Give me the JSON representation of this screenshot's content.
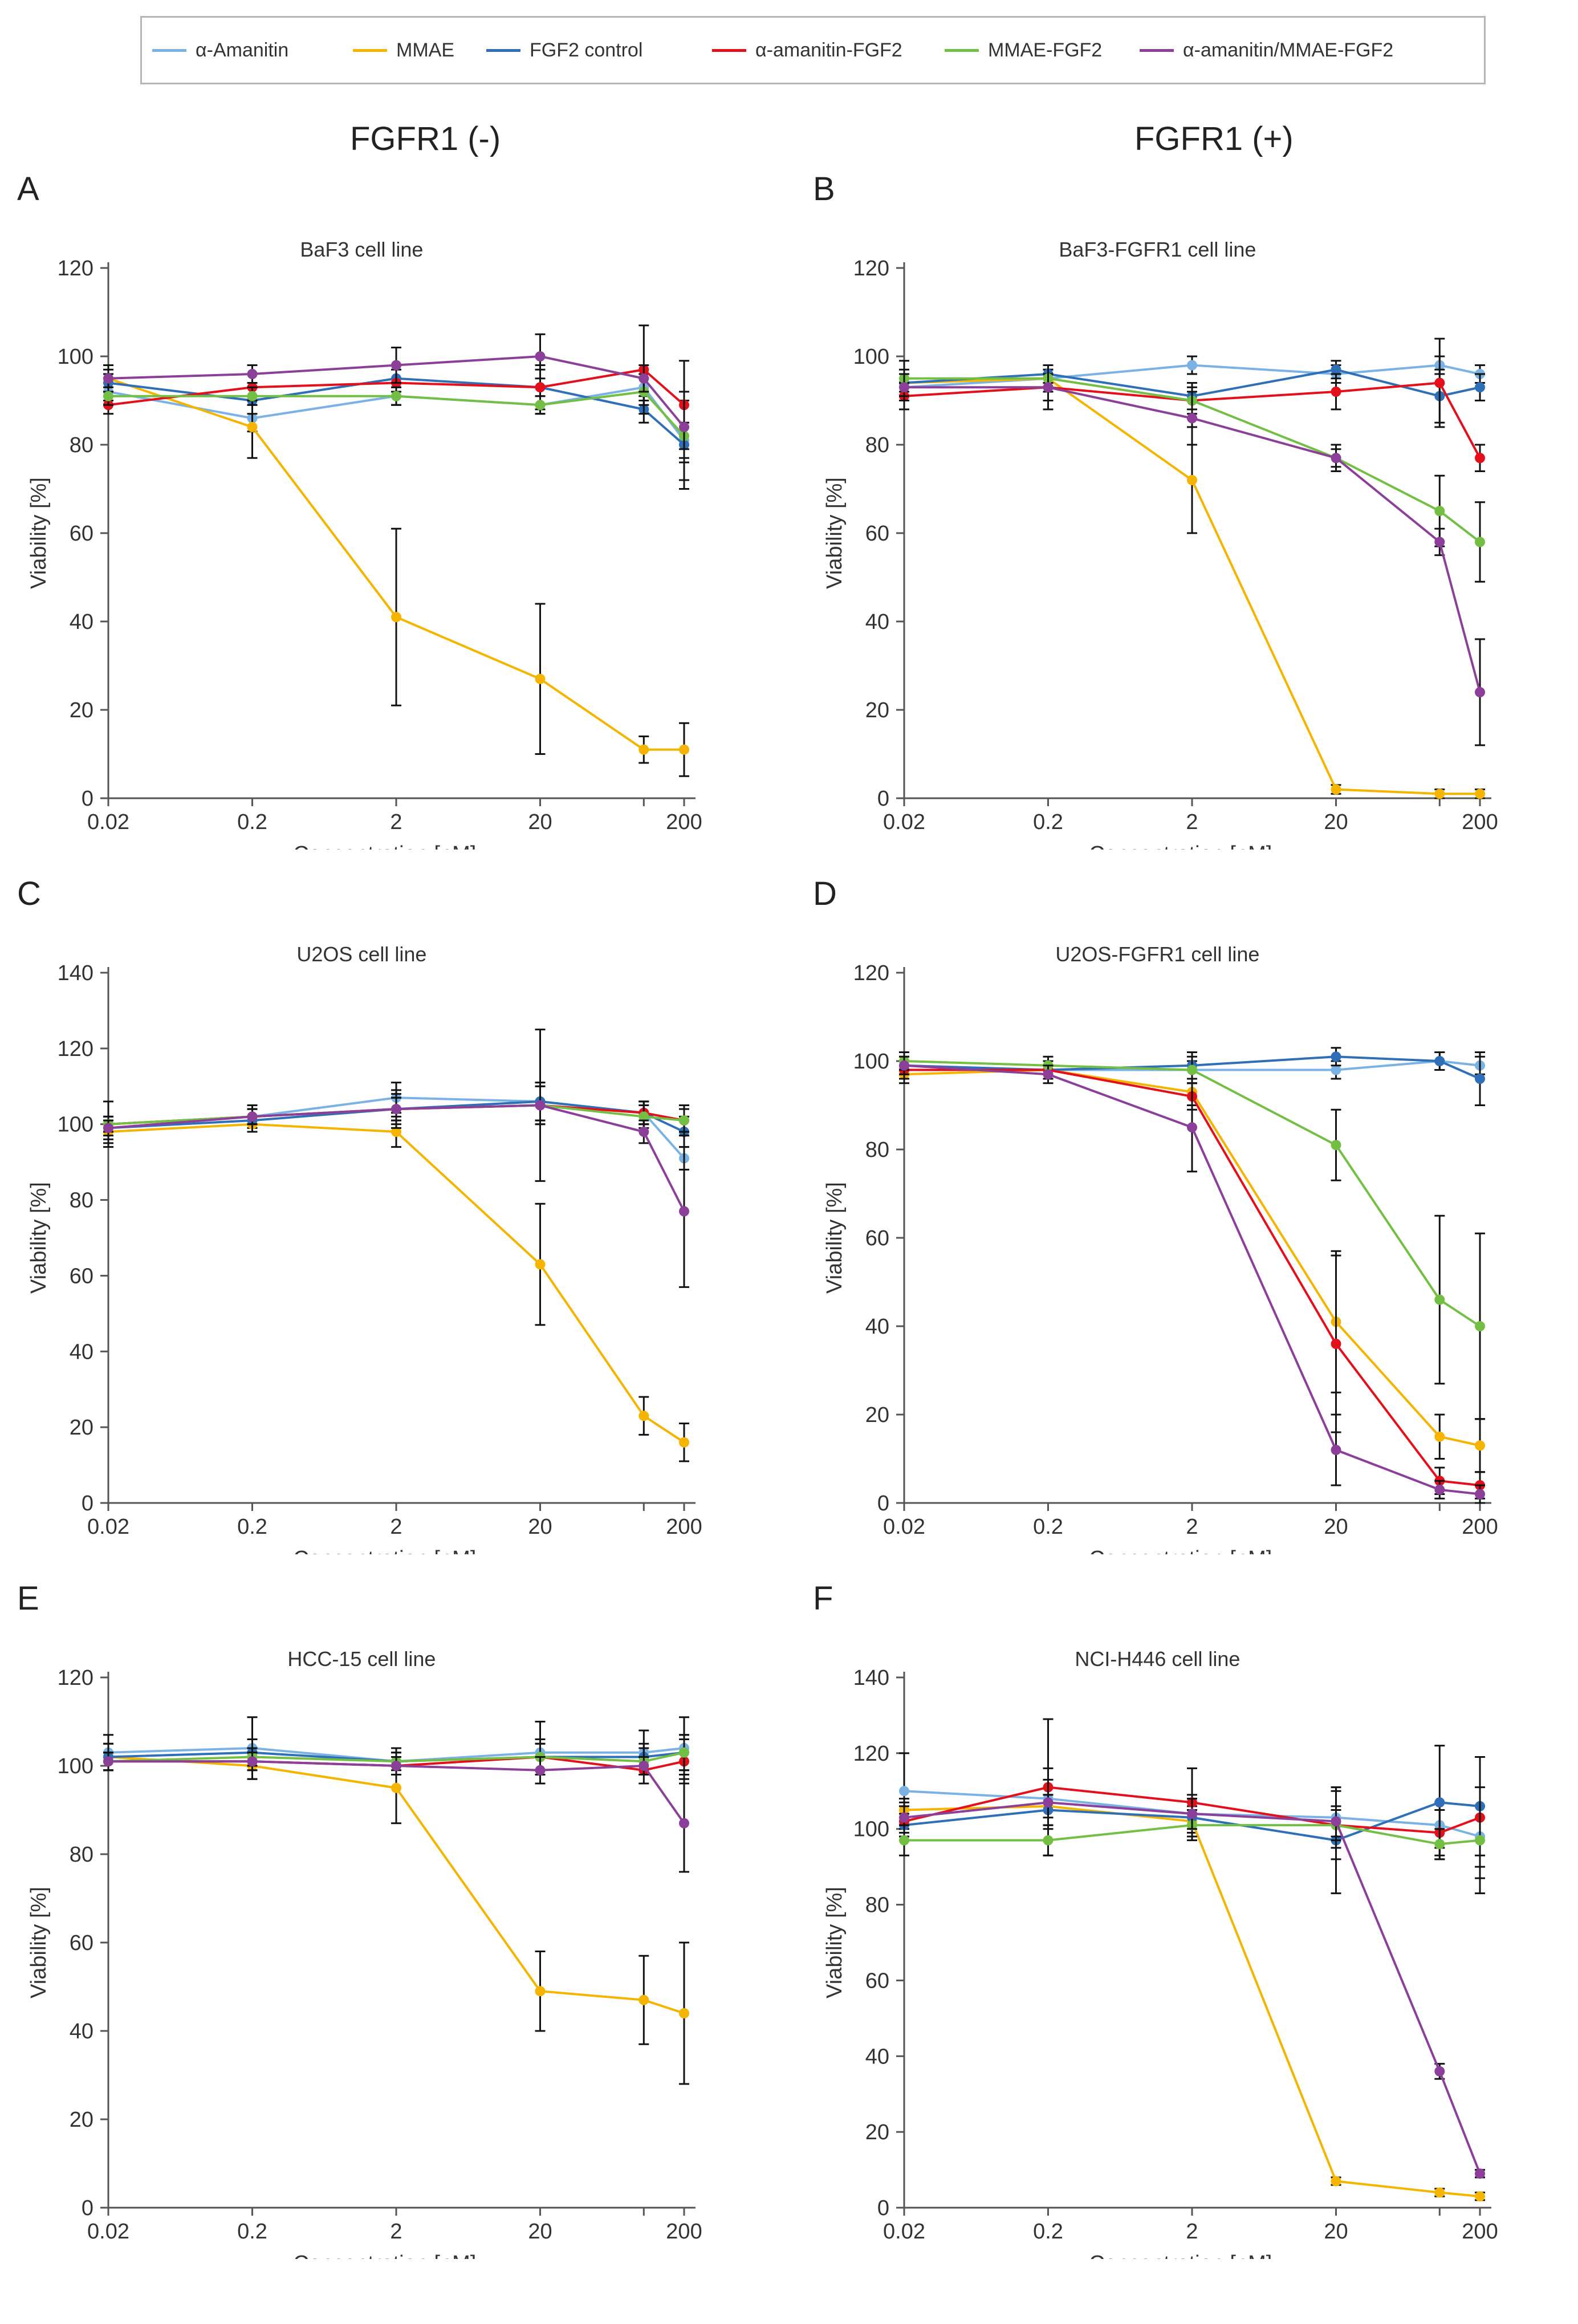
{
  "legend": [
    {
      "name": "α-Amanitin",
      "color": "#7ab3e3"
    },
    {
      "name": "MMAE",
      "color": "#f5b400"
    },
    {
      "name": "FGF2 control",
      "color": "#2e6fb8"
    },
    {
      "name": "α-amanitin-FGF2",
      "color": "#e3101c"
    },
    {
      "name": "MMAE-FGF2",
      "color": "#72bf44"
    },
    {
      "name": "α-amanitin/MMAE-FGF2",
      "color": "#8c3f99"
    }
  ],
  "headers": {
    "left": "FGFR1 (-)",
    "right": "FGFR1 (+)"
  },
  "chart_data": [
    {
      "panel": "A",
      "type": "line",
      "title": "BaF3 cell line",
      "xlabel": "Concentration [nM]",
      "ylabel": "Viability [%]",
      "categories": [
        "0.02",
        "0.2",
        "2",
        "20",
        "",
        "200"
      ],
      "ylim": [
        0,
        120
      ],
      "yticks": [
        0,
        20,
        40,
        60,
        80,
        100,
        120
      ],
      "series": [
        {
          "name": "α-Amanitin",
          "values": [
            92,
            86,
            91,
            89,
            93,
            81
          ],
          "errors": [
            2,
            3,
            2,
            2,
            3,
            4
          ]
        },
        {
          "name": "MMAE",
          "values": [
            95,
            84,
            41,
            27,
            11,
            11
          ],
          "errors": [
            3,
            7,
            20,
            17,
            3,
            6
          ]
        },
        {
          "name": "FGF2 control",
          "values": [
            94,
            90,
            95,
            93,
            88,
            80
          ],
          "errors": [
            2,
            3,
            3,
            4,
            3,
            10
          ]
        },
        {
          "name": "α-amanitin-FGF2",
          "values": [
            89,
            93,
            94,
            93,
            97,
            89
          ],
          "errors": [
            2,
            3,
            3,
            5,
            10,
            10
          ]
        },
        {
          "name": "MMAE-FGF2",
          "values": [
            91,
            91,
            91,
            89,
            92,
            82
          ],
          "errors": [
            2,
            2,
            2,
            2,
            3,
            10
          ]
        },
        {
          "name": "α-amanitin/MMAE-FGF2",
          "values": [
            95,
            96,
            98,
            100,
            95,
            84
          ],
          "errors": [
            2,
            2,
            4,
            5,
            3,
            8
          ]
        }
      ]
    },
    {
      "panel": "B",
      "type": "line",
      "title": "BaF3-FGFR1 cell line",
      "xlabel": "Concentration [nM]",
      "ylabel": "Viability [%]",
      "categories": [
        "0.02",
        "0.2",
        "2",
        "20",
        "",
        "200"
      ],
      "ylim": [
        0,
        120
      ],
      "yticks": [
        0,
        20,
        40,
        60,
        80,
        100,
        120
      ],
      "series": [
        {
          "name": "α-Amanitin",
          "values": [
            93,
            95,
            98,
            96,
            98,
            96
          ],
          "errors": [
            2,
            2,
            2,
            2,
            2,
            2
          ]
        },
        {
          "name": "MMAE",
          "values": [
            94,
            95,
            72,
            2,
            1,
            1
          ],
          "errors": [
            2,
            2,
            12,
            1,
            1,
            1
          ]
        },
        {
          "name": "FGF2 control",
          "values": [
            94,
            96,
            91,
            97,
            91,
            93
          ],
          "errors": [
            3,
            2,
            3,
            2,
            6,
            3
          ]
        },
        {
          "name": "α-amanitin-FGF2",
          "values": [
            91,
            93,
            90,
            92,
            94,
            77
          ],
          "errors": [
            3,
            3,
            4,
            4,
            10,
            3
          ]
        },
        {
          "name": "MMAE-FGF2",
          "values": [
            95,
            95,
            90,
            77,
            65,
            58
          ],
          "errors": [
            4,
            3,
            3,
            2,
            8,
            9
          ]
        },
        {
          "name": "α-amanitin/MMAE-FGF2",
          "values": [
            93,
            93,
            86,
            77,
            58,
            24
          ],
          "errors": [
            3,
            5,
            6,
            3,
            3,
            12
          ]
        }
      ]
    },
    {
      "panel": "C",
      "type": "line",
      "title": "U2OS cell line",
      "xlabel": "Concentration [nM]",
      "ylabel": "Viability [%]",
      "categories": [
        "0.02",
        "0.2",
        "2",
        "20",
        "",
        "200"
      ],
      "ylim": [
        0,
        140
      ],
      "yticks": [
        0,
        20,
        40,
        60,
        80,
        100,
        120,
        140
      ],
      "series": [
        {
          "name": "α-Amanitin",
          "values": [
            100,
            102,
            107,
            106,
            103,
            91
          ],
          "errors": [
            6,
            3,
            4,
            5,
            3,
            3
          ]
        },
        {
          "name": "MMAE",
          "values": [
            98,
            100,
            98,
            63,
            23,
            16
          ],
          "errors": [
            3,
            2,
            4,
            16,
            5,
            5
          ]
        },
        {
          "name": "FGF2 control",
          "values": [
            99,
            101,
            104,
            106,
            103,
            98
          ],
          "errors": [
            3,
            3,
            3,
            5,
            3,
            4
          ]
        },
        {
          "name": "α-amanitin-FGF2",
          "values": [
            100,
            102,
            104,
            105,
            103,
            101
          ],
          "errors": [
            2,
            2,
            4,
            5,
            3,
            3
          ]
        },
        {
          "name": "MMAE-FGF2",
          "values": [
            100,
            102,
            104,
            105,
            102,
            101
          ],
          "errors": [
            2,
            2,
            3,
            5,
            3,
            4
          ]
        },
        {
          "name": "α-amanitin/MMAE-FGF2",
          "values": [
            99,
            102,
            104,
            105,
            98,
            77
          ],
          "errors": [
            2,
            2,
            5,
            20,
            3,
            20
          ]
        }
      ]
    },
    {
      "panel": "D",
      "type": "line",
      "title": "U2OS-FGFR1 cell line",
      "xlabel": "Concentration [nM]",
      "ylabel": "Viability [%]",
      "categories": [
        "0.02",
        "0.2",
        "2",
        "20",
        "",
        "200"
      ],
      "ylim": [
        0,
        120
      ],
      "yticks": [
        0,
        20,
        40,
        60,
        80,
        100,
        120
      ],
      "series": [
        {
          "name": "α-Amanitin",
          "values": [
            98,
            98,
            98,
            98,
            100,
            99
          ],
          "errors": [
            2,
            2,
            2,
            2,
            2,
            2
          ]
        },
        {
          "name": "MMAE",
          "values": [
            97,
            98,
            93,
            41,
            15,
            13
          ],
          "errors": [
            2,
            2,
            3,
            16,
            5,
            6
          ]
        },
        {
          "name": "FGF2 control",
          "values": [
            99,
            98,
            99,
            101,
            100,
            96
          ],
          "errors": [
            2,
            2,
            3,
            2,
            2,
            6
          ]
        },
        {
          "name": "α-amanitin-FGF2",
          "values": [
            98,
            98,
            92,
            36,
            5,
            4
          ],
          "errors": [
            2,
            2,
            3,
            20,
            3,
            3
          ]
        },
        {
          "name": "MMAE-FGF2",
          "values": [
            100,
            99,
            98,
            81,
            46,
            40
          ],
          "errors": [
            2,
            2,
            3,
            8,
            19,
            21
          ]
        },
        {
          "name": "α-amanitin/MMAE-FGF2",
          "values": [
            99,
            97,
            85,
            12,
            3,
            2
          ],
          "errors": [
            2,
            2,
            10,
            8,
            2,
            2
          ]
        }
      ]
    },
    {
      "panel": "E",
      "type": "line",
      "title": "HCC-15 cell line",
      "xlabel": "Concentration [nM]",
      "ylabel": "Viability [%]",
      "categories": [
        "0.02",
        "0.2",
        "2",
        "20",
        "",
        "200"
      ],
      "ylim": [
        0,
        120
      ],
      "yticks": [
        0,
        20,
        40,
        60,
        80,
        100,
        120
      ],
      "series": [
        {
          "name": "α-Amanitin",
          "values": [
            103,
            104,
            101,
            103,
            103,
            104
          ],
          "errors": [
            4,
            7,
            3,
            7,
            5,
            7
          ]
        },
        {
          "name": "MMAE",
          "values": [
            102,
            100,
            95,
            49,
            47,
            44
          ],
          "errors": [
            3,
            3,
            8,
            9,
            10,
            16
          ]
        },
        {
          "name": "FGF2 control",
          "values": [
            102,
            103,
            101,
            102,
            102,
            103
          ],
          "errors": [
            3,
            3,
            3,
            4,
            3,
            4
          ]
        },
        {
          "name": "α-amanitin-FGF2",
          "values": [
            101,
            101,
            100,
            102,
            99,
            101
          ],
          "errors": [
            2,
            2,
            2,
            3,
            3,
            5
          ]
        },
        {
          "name": "MMAE-FGF2",
          "values": [
            101,
            102,
            101,
            102,
            101,
            103
          ],
          "errors": [
            2,
            2,
            2,
            3,
            3,
            4
          ]
        },
        {
          "name": "α-amanitin/MMAE-FGF2",
          "values": [
            101,
            101,
            100,
            99,
            100,
            87
          ],
          "errors": [
            2,
            2,
            2,
            3,
            2,
            11
          ]
        }
      ]
    },
    {
      "panel": "F",
      "type": "line",
      "title": "NCI-H446 cell line",
      "xlabel": "Concentration [nM]",
      "ylabel": "Viability [%]",
      "categories": [
        "0.02",
        "0.2",
        "2",
        "20",
        "",
        "200"
      ],
      "ylim": [
        0,
        140
      ],
      "yticks": [
        0,
        20,
        40,
        60,
        80,
        100,
        120,
        140
      ],
      "series": [
        {
          "name": "α-Amanitin",
          "values": [
            110,
            108,
            104,
            103,
            101,
            98
          ],
          "errors": [
            10,
            8,
            5,
            8,
            6,
            8
          ]
        },
        {
          "name": "MMAE",
          "values": [
            105,
            106,
            102,
            7,
            4,
            3
          ],
          "errors": [
            3,
            3,
            4,
            1,
            1,
            1
          ]
        },
        {
          "name": "FGF2 control",
          "values": [
            101,
            105,
            103,
            97,
            107,
            106
          ],
          "errors": [
            3,
            4,
            5,
            14,
            15,
            13
          ]
        },
        {
          "name": "α-amanitin-FGF2",
          "values": [
            102,
            111,
            107,
            101,
            99,
            103
          ],
          "errors": [
            4,
            18,
            9,
            9,
            6,
            16
          ]
        },
        {
          "name": "MMAE-FGF2",
          "values": [
            97,
            97,
            101,
            101,
            96,
            97
          ],
          "errors": [
            4,
            4,
            4,
            4,
            4,
            14
          ]
        },
        {
          "name": "α-amanitin/MMAE-FGF2",
          "values": [
            103,
            107,
            104,
            102,
            36,
            9
          ],
          "errors": [
            4,
            6,
            4,
            4,
            2,
            1
          ]
        }
      ]
    }
  ]
}
